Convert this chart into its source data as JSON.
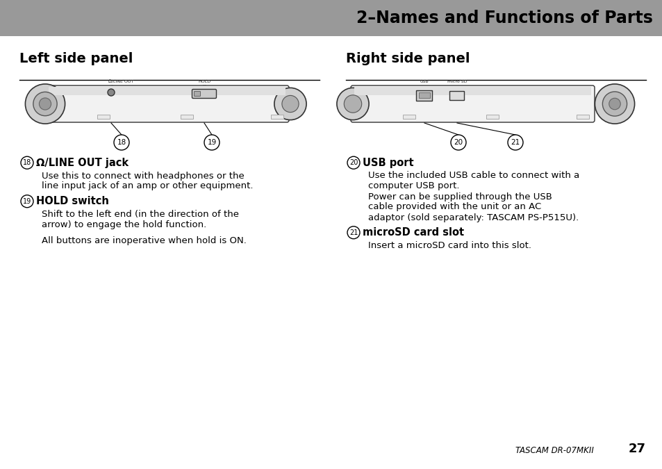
{
  "title": "2–Names and Functions of Parts",
  "title_bg": "#999999",
  "page_bg": "#ffffff",
  "left_panel_title": "Left side panel",
  "right_panel_title": "Right side panel",
  "left_items": [
    {
      "num": "18",
      "heading": "Ω/LINE OUT jack",
      "body": [
        "Use this to connect with headphones or the",
        "line input jack of an amp or other equipment."
      ]
    },
    {
      "num": "19",
      "heading": "HOLD switch",
      "body": [
        "Shift to the left end (in the direction of the",
        "arrow) to engage the hold function.",
        "",
        "All buttons are inoperative when hold is ON."
      ]
    }
  ],
  "right_items": [
    {
      "num": "20",
      "heading": "USB port",
      "body": [
        "Use the included USB cable to connect with a",
        "computer USB port.",
        "Power can be supplied through the USB",
        "cable provided with the unit or an AC",
        "adaptor (sold separately: TASCAM PS-P515U)."
      ]
    },
    {
      "num": "21",
      "heading": "microSD card slot",
      "body": [
        "Insert a microSD card into this slot."
      ]
    }
  ],
  "footer_text": "TASCAM DR-07MKII",
  "footer_page": "27"
}
